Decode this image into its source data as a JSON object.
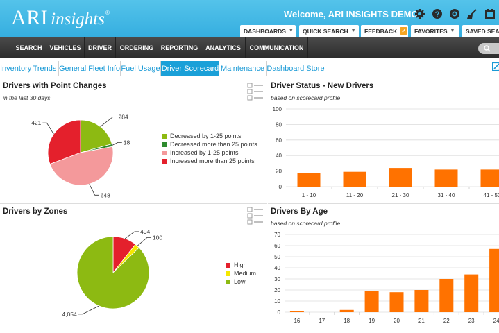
{
  "header": {
    "logo_main": "ARI",
    "logo_sub": "insights",
    "logo_reg": "®",
    "welcome": "Welcome, ARI INSIGHTS DEMO",
    "icons": [
      "gear-icon",
      "help-icon",
      "support-icon",
      "broom-icon",
      "calendar-icon"
    ],
    "sub_menu": [
      "DASHBOARDS",
      "QUICK SEARCH",
      "FEEDBACK",
      "FAVORITES",
      "SAVED SEAR"
    ]
  },
  "nav": {
    "items": [
      "SEARCH",
      "VEHICLES",
      "DRIVER",
      "ORDERING",
      "REPORTING",
      "ANALYTICS",
      "COMMUNICATION"
    ]
  },
  "tabs": {
    "items": [
      "Inventory",
      "Trends",
      "General Fleet Info",
      "Fuel Usage",
      "Driver Scorecard",
      "Maintenance",
      "Dashboard Store"
    ],
    "active": "Driver Scorecard"
  },
  "colors": {
    "header_blue": "#3fb6e4",
    "accent_orange": "#ff7200",
    "green": "#8dba12",
    "dark_green": "#2e8b2e",
    "pink": "#f4999b",
    "red": "#e4202c",
    "yellow": "#f5e800"
  },
  "panels": {
    "point_changes": {
      "title": "Drivers with Point Changes",
      "subtitle": "in the last 30 days",
      "chart_data": {
        "type": "pie",
        "slices": [
          {
            "label": "Decreased by 1-25 points",
            "value": 284,
            "color": "#8dba12"
          },
          {
            "label": "Decreased more than 25 points",
            "value": 18,
            "color": "#2e8b2e"
          },
          {
            "label": "Increased by 1-25 points",
            "value": 648,
            "color": "#f4999b"
          },
          {
            "label": "Increased more than 25 points",
            "value": 421,
            "color": "#e4202c"
          }
        ],
        "value_labels": [
          "284",
          "18",
          "648",
          "421"
        ],
        "legend_position": "right"
      }
    },
    "driver_status": {
      "title": "Driver Status - New Drivers",
      "subtitle": "based on scorecard profile",
      "chart_data": {
        "type": "bar",
        "categories": [
          "1 - 10",
          "11 - 20",
          "21 - 30",
          "31 - 40",
          "41 - 50"
        ],
        "values": [
          17,
          19,
          24,
          22,
          22
        ],
        "ylim": [
          0,
          100
        ],
        "yticks": [
          "0",
          "20",
          "40",
          "60",
          "80",
          "100"
        ],
        "grid": true,
        "color": "#ff7200"
      }
    },
    "zones": {
      "title": "Drivers by Zones",
      "chart_data": {
        "type": "pie",
        "slices": [
          {
            "label": "High",
            "value": 494,
            "color": "#e4202c"
          },
          {
            "label": "Medium",
            "value": 100,
            "color": "#f5e800"
          },
          {
            "label": "Low",
            "value": 4054,
            "color": "#8dba12"
          }
        ],
        "value_labels": [
          "494",
          "100",
          "4,054"
        ],
        "legend_position": "right"
      }
    },
    "by_age": {
      "title": "Drivers By Age",
      "subtitle": "based on scorecard profile",
      "chart_data": {
        "type": "bar",
        "categories": [
          "16",
          "17",
          "18",
          "19",
          "20",
          "21",
          "22",
          "23",
          "24"
        ],
        "values": [
          1,
          0,
          2,
          19,
          18,
          20,
          30,
          34,
          57
        ],
        "ylim": [
          0,
          70
        ],
        "yticks": [
          "0",
          "10",
          "20",
          "30",
          "40",
          "50",
          "60",
          "70"
        ],
        "grid": true,
        "color": "#ff7200"
      }
    }
  }
}
